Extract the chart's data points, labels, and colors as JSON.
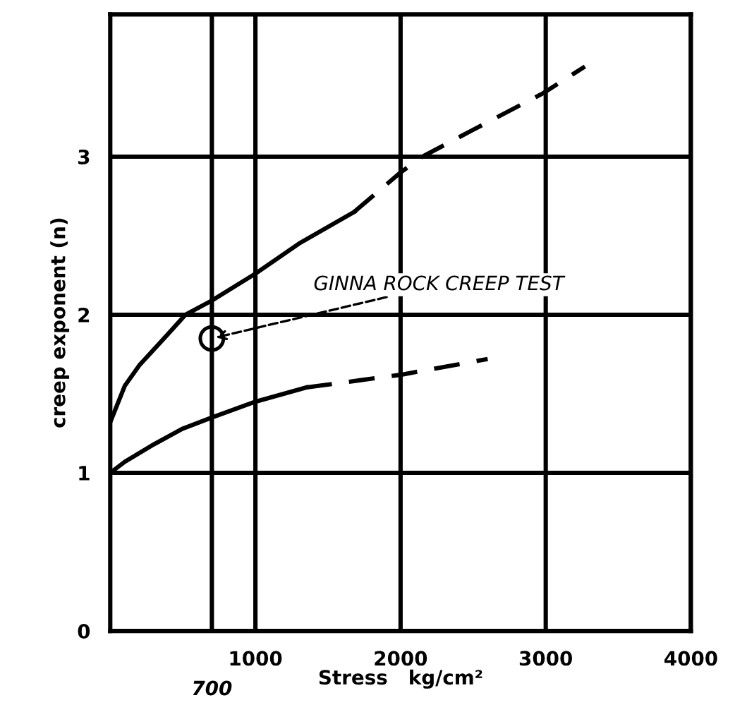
{
  "chart_data": {
    "type": "line",
    "xlabel": "Stress   kg/cm²",
    "ylabel": "creep exponent (n)",
    "xlim": [
      0,
      4000
    ],
    "ylim": [
      0,
      3.9
    ],
    "xticks": [
      1000,
      2000,
      3000,
      4000
    ],
    "yticks": [
      0,
      1,
      2,
      3
    ],
    "ref_lines": [
      {
        "axis": "x",
        "value": 700,
        "label": "700",
        "color": "#000000",
        "line_style": "solid"
      }
    ],
    "grid": true,
    "legend": false,
    "series": [
      {
        "color": "#000000",
        "line_style": "solid",
        "marker": "none",
        "x": [
          0,
          100,
          200,
          400,
          518,
          700,
          1000,
          1300,
          1680
        ],
        "values": [
          1.32,
          1.55,
          1.68,
          1.88,
          2.0,
          2.09,
          2.26,
          2.45,
          2.65
        ]
      },
      {
        "color": "#000000",
        "line_style": "dashed",
        "marker": "none",
        "x": [
          1680,
          2000,
          2150,
          2500,
          2980,
          3270
        ],
        "values": [
          2.65,
          2.9,
          3.0,
          3.17,
          3.4,
          3.57
        ]
      },
      {
        "color": "#000000",
        "line_style": "solid",
        "marker": "none",
        "x": [
          0,
          100,
          300,
          500,
          700,
          1000,
          1350
        ],
        "values": [
          1.0,
          1.07,
          1.18,
          1.28,
          1.35,
          1.45,
          1.54
        ]
      },
      {
        "color": "#000000",
        "line_style": "dashed",
        "marker": "none",
        "x": [
          1350,
          2000,
          2600
        ],
        "values": [
          1.54,
          1.62,
          1.72
        ]
      },
      {
        "type": "scatter",
        "color": "#000000",
        "marker": "circle",
        "x": [
          700
        ],
        "values": [
          1.85
        ]
      }
    ],
    "annotations": [
      {
        "text": "GINNA ROCK CREEP TEST",
        "x": 700,
        "y": 1.85
      }
    ]
  }
}
